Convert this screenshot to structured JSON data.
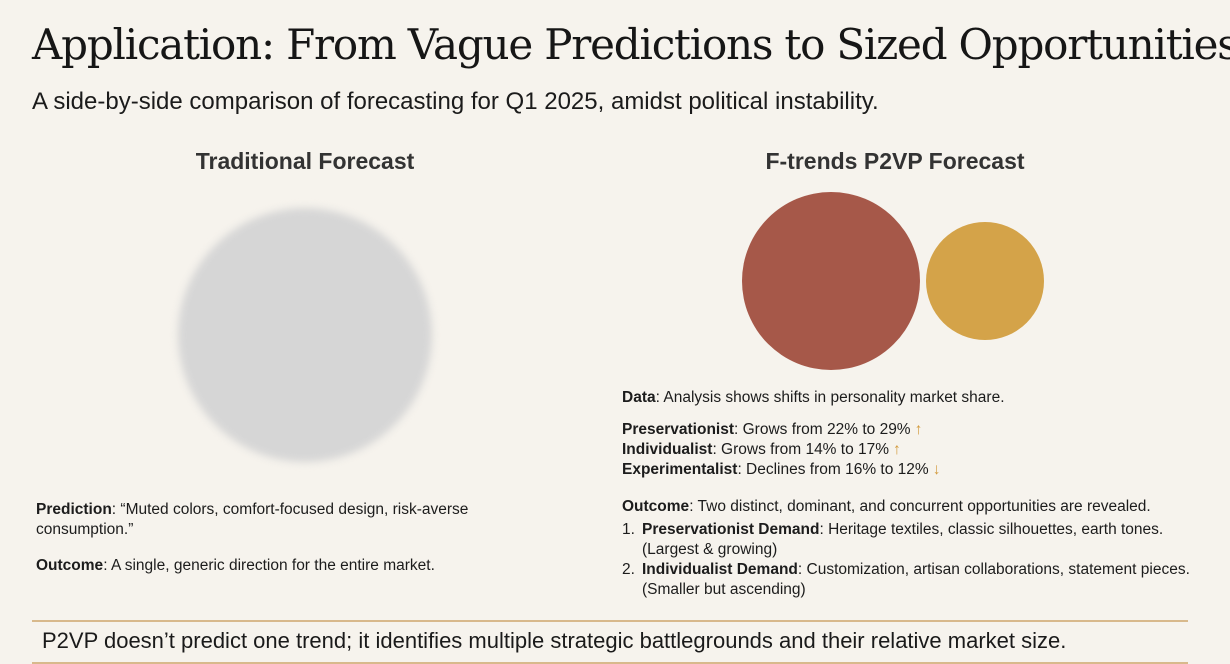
{
  "title": "Application: From Vague Predictions to Sized Opportunities",
  "subtitle": "A side-by-side comparison of forecasting for Q1 2025, amidst political instability.",
  "traditional": {
    "heading": "Traditional Forecast",
    "prediction_label": "Prediction",
    "prediction_text": ": “Muted colors, comfort-focused design, risk-averse consumption.”",
    "outcome_label": "Outcome",
    "outcome_text": ": A single, generic direction for the entire market."
  },
  "p2vp": {
    "heading": "F-trends P2VP Forecast",
    "data_label": "Data",
    "data_text": ": Analysis shows shifts in personality market share.",
    "shifts": [
      {
        "label": "Preservationist",
        "text": ": Grows from 22% to 29%",
        "arrow": "↑"
      },
      {
        "label": "Individualist",
        "text": ": Grows from 14% to 17%",
        "arrow": "↑"
      },
      {
        "label": "Experimentalist",
        "text": ": Declines from 16% to 12%",
        "arrow": "↓"
      }
    ],
    "outcome_label": "Outcome",
    "outcome_text": ": Two distinct, dominant, and concurrent opportunities are revealed.",
    "demands": [
      {
        "num": "1.",
        "label": "Preservationist Demand",
        "text": ": Heritage textiles, classic silhouettes, earth tones. (Largest & growing)"
      },
      {
        "num": "2.",
        "label": "Individualist Demand",
        "text": ": Customization, artisan collaborations, statement pieces. (Smaller but ascending)"
      }
    ]
  },
  "colors": {
    "preservationist": "#a65849",
    "individualist": "#d4a349",
    "traditional_blur": "#d6d6d6",
    "accent_line": "#d8b98c"
  },
  "footer": "P2VP doesn’t predict one trend; it identifies multiple strategic battlegrounds and their relative market size."
}
